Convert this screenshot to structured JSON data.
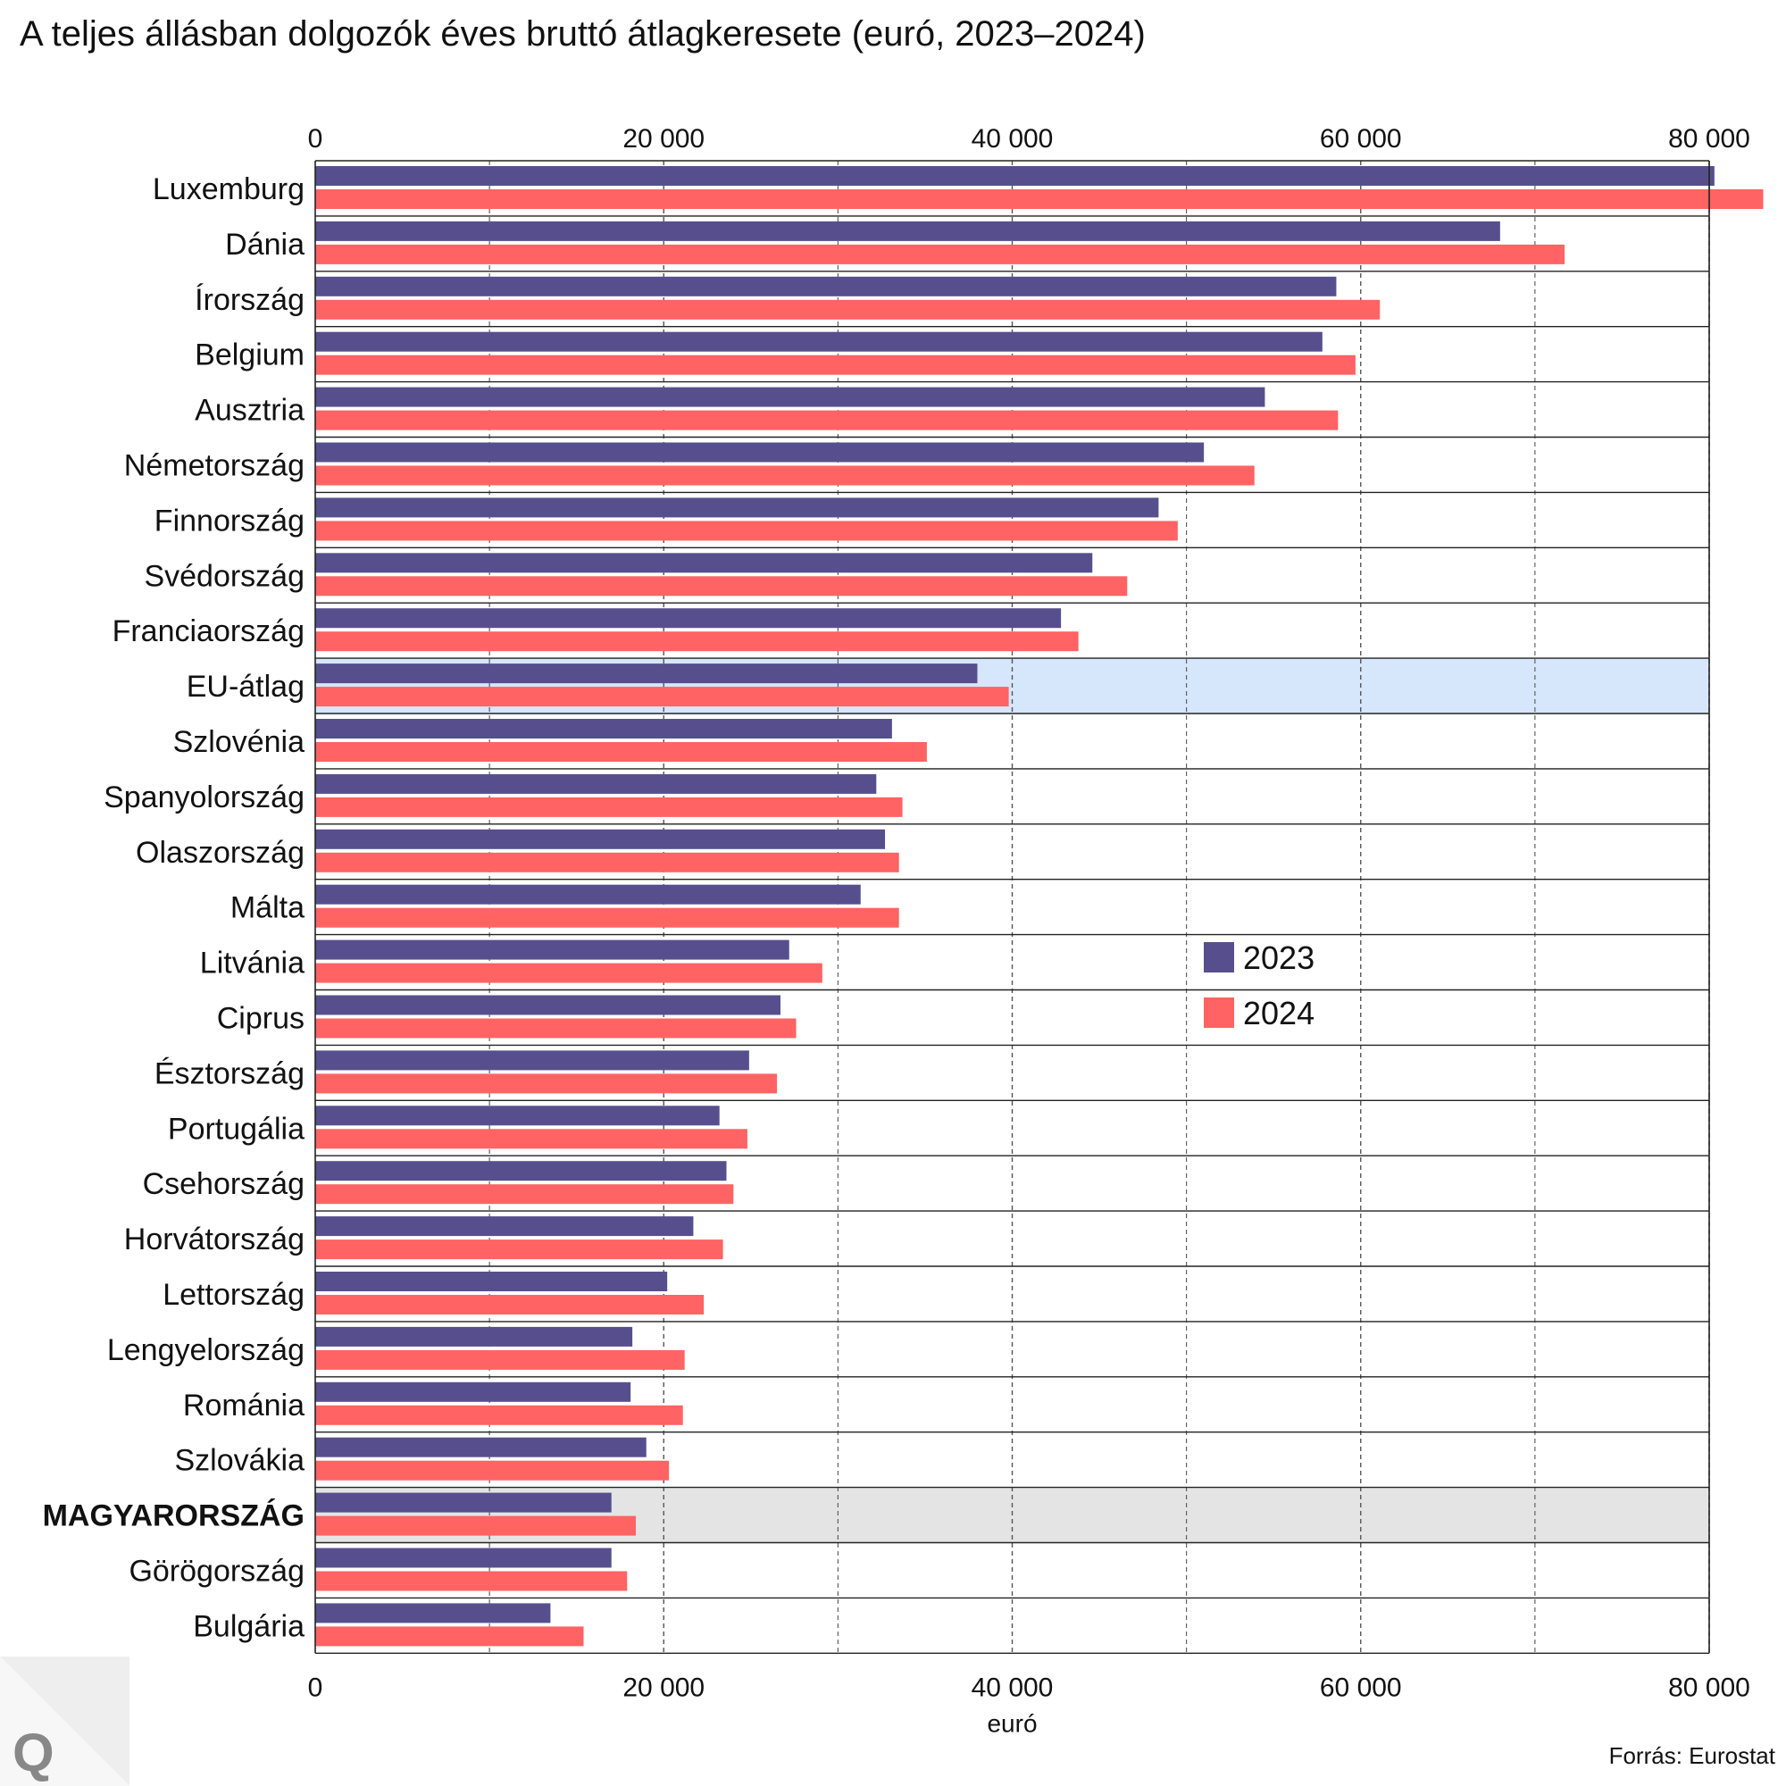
{
  "title": "A teljes állásban dolgozók éves bruttó átlagkeresete (euró, 2023–2024)",
  "source": "Forrás: Eurostat",
  "logo_letter": "Q",
  "colors": {
    "series_2023": "#574f8d",
    "series_2024": "#ff6363",
    "highlight_eu": "#d6e6fb",
    "highlight_hu": "#e4e4e4"
  },
  "chart_data": {
    "type": "bar",
    "orientation": "horizontal",
    "xlabel": "euró",
    "xlim": [
      0,
      80000
    ],
    "xticks": [
      0,
      20000,
      40000,
      60000,
      80000
    ],
    "xtick_labels": [
      "0",
      "20 000",
      "40 000",
      "60 000",
      "80 000"
    ],
    "grid": "vertical dashed every 10000",
    "legend_position": "center-right",
    "categories": [
      "Luxemburg",
      "Dánia",
      "Írország",
      "Belgium",
      "Ausztria",
      "Németország",
      "Finnország",
      "Svédország",
      "Franciaország",
      "EU-átlag",
      "Szlovénia",
      "Spanyolország",
      "Olaszország",
      "Málta",
      "Litvánia",
      "Ciprus",
      "Észtország",
      "Portugália",
      "Csehország",
      "Horvátország",
      "Lettország",
      "Lengyelország",
      "Románia",
      "Szlovákia",
      "MAGYARORSZÁG",
      "Görögország",
      "Bulgária"
    ],
    "highlighted": {
      "EU-átlag": "highlight_eu",
      "MAGYARORSZÁG": "highlight_hu"
    },
    "bold_categories": [
      "MAGYARORSZÁG"
    ],
    "series": [
      {
        "name": "2023",
        "values": [
          80300,
          68000,
          58600,
          57800,
          54500,
          51000,
          48400,
          44600,
          42800,
          38000,
          33100,
          32200,
          32700,
          31300,
          27200,
          26700,
          24900,
          23200,
          23600,
          21700,
          20200,
          18200,
          18100,
          19000,
          17000,
          17000,
          13500
        ]
      },
      {
        "name": "2024",
        "values": [
          83100,
          71700,
          61100,
          59700,
          58700,
          53900,
          49500,
          46600,
          43800,
          39800,
          35100,
          33700,
          33500,
          33500,
          29100,
          27600,
          26500,
          24800,
          24000,
          23400,
          22300,
          21200,
          21100,
          20300,
          18400,
          17900,
          15400
        ]
      }
    ]
  }
}
